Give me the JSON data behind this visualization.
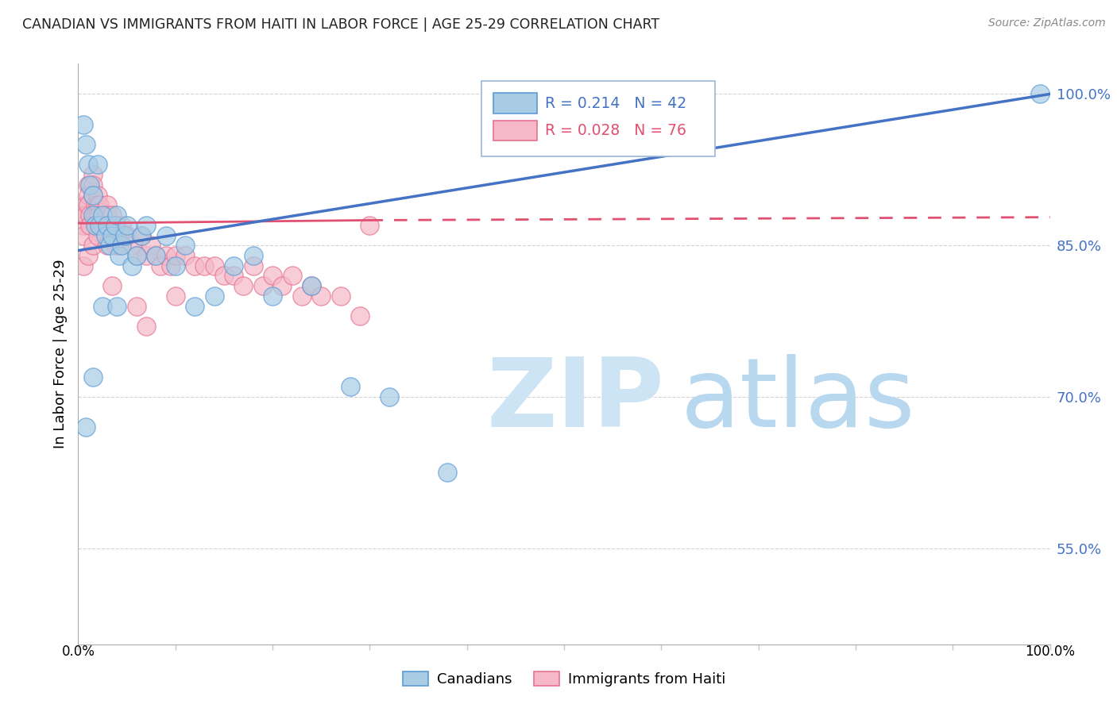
{
  "title": "CANADIAN VS IMMIGRANTS FROM HAITI IN LABOR FORCE | AGE 25-29 CORRELATION CHART",
  "source": "Source: ZipAtlas.com",
  "ylabel": "In Labor Force | Age 25-29",
  "watermark_zip": "ZIP",
  "watermark_atlas": "atlas",
  "ytick_labels": [
    "100.0%",
    "85.0%",
    "70.0%",
    "55.0%"
  ],
  "ytick_values": [
    1.0,
    0.85,
    0.7,
    0.55
  ],
  "xlim": [
    0.0,
    1.0
  ],
  "ylim": [
    0.455,
    1.03
  ],
  "canadian_R": 0.214,
  "canadian_N": 42,
  "haiti_R": 0.028,
  "haiti_N": 76,
  "canadian_color": "#a8cce4",
  "haiti_color": "#f4b8c8",
  "canadian_edge_color": "#5b9bd5",
  "haiti_edge_color": "#e87090",
  "canadian_line_color": "#4472c4",
  "haiti_line_color": "#e05070",
  "background_color": "#ffffff",
  "grid_color": "#c8c8c8",
  "title_color": "#222222",
  "source_color": "#888888",
  "ytick_color": "#4472c4",
  "legend_R_canadian_color": "#4472c4",
  "legend_R_haiti_color": "#e05070",
  "canadians_x": [
    0.005,
    0.008,
    0.01,
    0.012,
    0.015,
    0.015,
    0.018,
    0.02,
    0.022,
    0.025,
    0.028,
    0.03,
    0.032,
    0.035,
    0.038,
    0.04,
    0.042,
    0.045,
    0.048,
    0.05,
    0.055,
    0.06,
    0.065,
    0.07,
    0.08,
    0.09,
    0.1,
    0.11,
    0.12,
    0.14,
    0.16,
    0.18,
    0.2,
    0.24,
    0.28,
    0.32,
    0.008,
    0.015,
    0.025,
    0.04,
    0.38,
    0.99
  ],
  "canadians_y": [
    0.97,
    0.95,
    0.93,
    0.91,
    0.9,
    0.88,
    0.87,
    0.93,
    0.87,
    0.88,
    0.86,
    0.87,
    0.85,
    0.86,
    0.87,
    0.88,
    0.84,
    0.85,
    0.86,
    0.87,
    0.83,
    0.84,
    0.86,
    0.87,
    0.84,
    0.86,
    0.83,
    0.85,
    0.79,
    0.8,
    0.83,
    0.84,
    0.8,
    0.81,
    0.71,
    0.7,
    0.67,
    0.72,
    0.79,
    0.79,
    0.625,
    1.0
  ],
  "haiti_x": [
    0.005,
    0.005,
    0.005,
    0.008,
    0.008,
    0.01,
    0.01,
    0.01,
    0.012,
    0.012,
    0.015,
    0.015,
    0.015,
    0.018,
    0.018,
    0.02,
    0.02,
    0.02,
    0.022,
    0.022,
    0.025,
    0.025,
    0.028,
    0.028,
    0.03,
    0.03,
    0.032,
    0.032,
    0.035,
    0.035,
    0.038,
    0.038,
    0.04,
    0.04,
    0.042,
    0.045,
    0.048,
    0.05,
    0.055,
    0.06,
    0.065,
    0.07,
    0.075,
    0.08,
    0.085,
    0.09,
    0.095,
    0.1,
    0.11,
    0.12,
    0.13,
    0.14,
    0.15,
    0.16,
    0.17,
    0.18,
    0.19,
    0.2,
    0.21,
    0.22,
    0.23,
    0.24,
    0.25,
    0.27,
    0.29,
    0.005,
    0.01,
    0.015,
    0.02,
    0.025,
    0.03,
    0.035,
    0.06,
    0.07,
    0.1,
    0.3
  ],
  "haiti_y": [
    0.88,
    0.87,
    0.86,
    0.89,
    0.88,
    0.91,
    0.9,
    0.89,
    0.88,
    0.87,
    0.92,
    0.91,
    0.9,
    0.89,
    0.88,
    0.9,
    0.89,
    0.88,
    0.89,
    0.88,
    0.87,
    0.86,
    0.88,
    0.87,
    0.89,
    0.88,
    0.87,
    0.86,
    0.88,
    0.87,
    0.86,
    0.85,
    0.87,
    0.86,
    0.85,
    0.87,
    0.86,
    0.86,
    0.85,
    0.84,
    0.86,
    0.84,
    0.85,
    0.84,
    0.83,
    0.84,
    0.83,
    0.84,
    0.84,
    0.83,
    0.83,
    0.83,
    0.82,
    0.82,
    0.81,
    0.83,
    0.81,
    0.82,
    0.81,
    0.82,
    0.8,
    0.81,
    0.8,
    0.8,
    0.78,
    0.83,
    0.84,
    0.85,
    0.86,
    0.87,
    0.85,
    0.81,
    0.79,
    0.77,
    0.8,
    0.87
  ],
  "canadian_trend_x": [
    0.0,
    1.0
  ],
  "canadian_trend_y": [
    0.845,
    1.0
  ],
  "haiti_trend_x": [
    0.0,
    0.55
  ],
  "haiti_trend_y": [
    0.872,
    0.878
  ]
}
